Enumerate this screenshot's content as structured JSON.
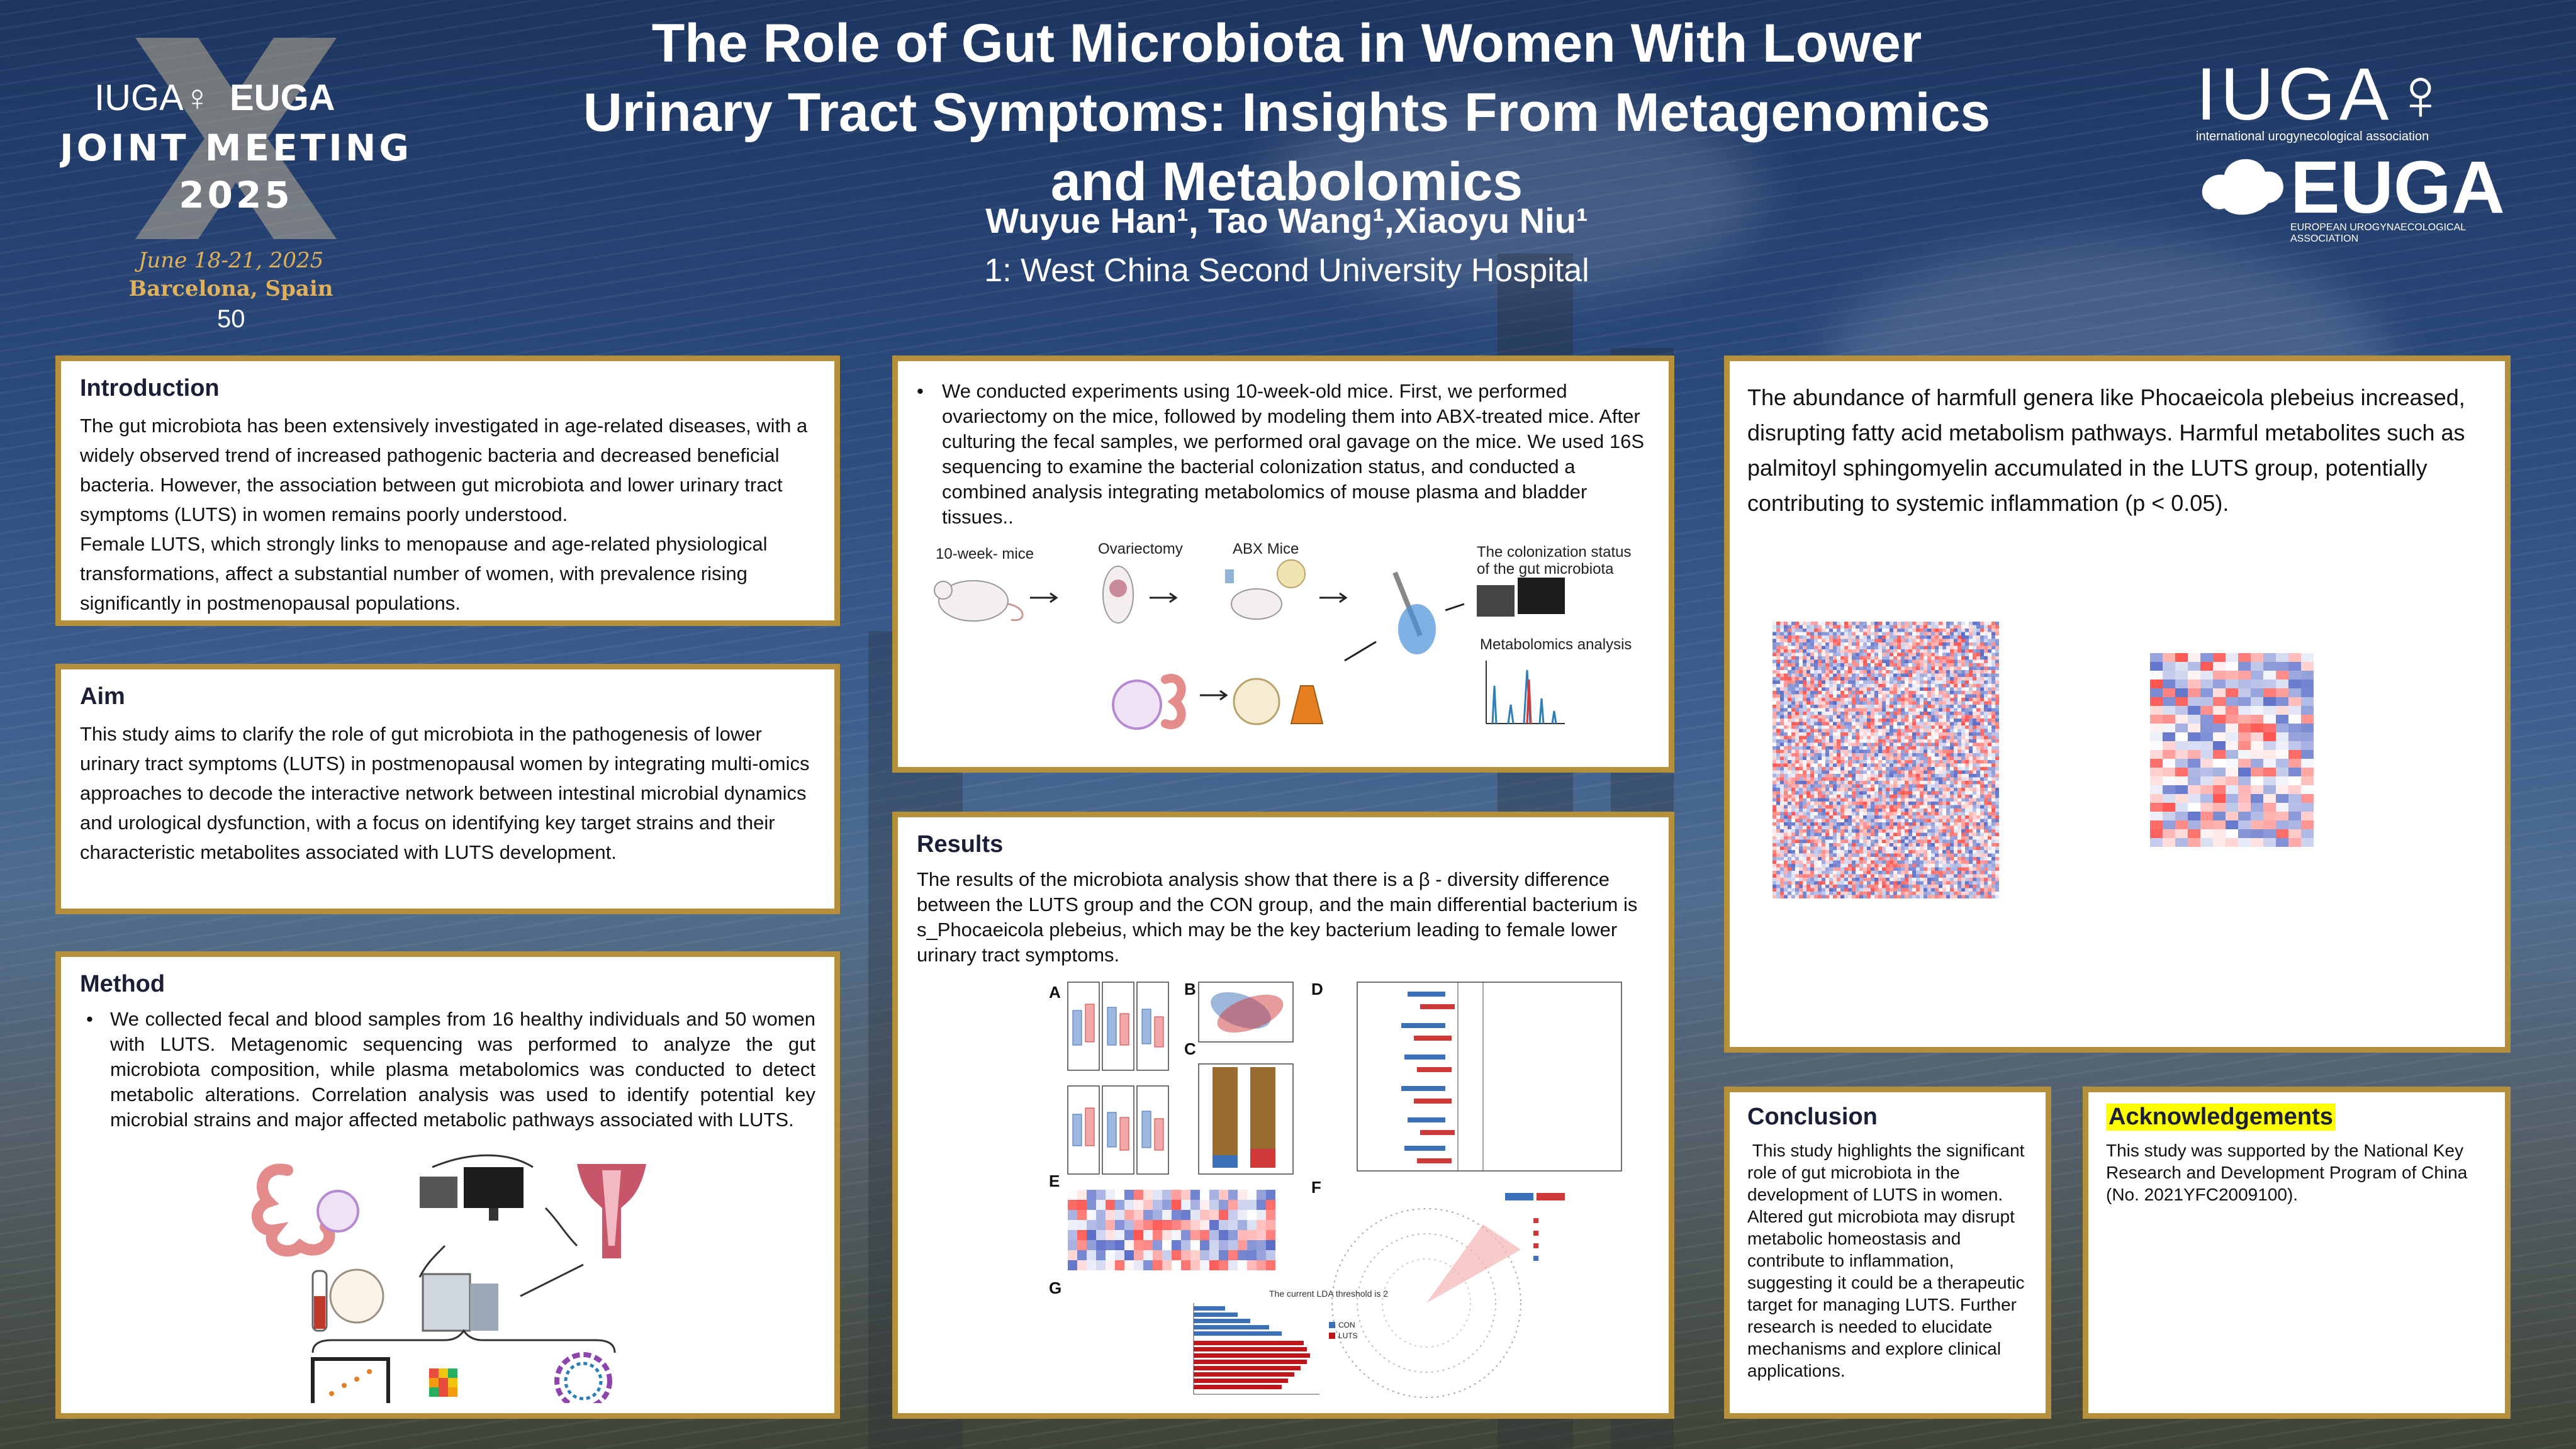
{
  "header": {
    "title_line1": "The Role of Gut Microbiota in Women With Lower",
    "title_line2": "Urinary Tract Symptoms: Insights From Metagenomics",
    "title_line3": "and Metabolomics",
    "authors": "Wuyue Han¹, Tao Wang¹,Xiaoyu Niu¹",
    "affiliation": "1: West China Second University Hospital"
  },
  "logo_left": {
    "iuga": "IUGA♀",
    "euga": "EUGA",
    "line1": "JOINT MEETING",
    "line2": "2025",
    "dates": "June 18-21, 2025",
    "place": "Barcelona, Spain",
    "anniv": "50"
  },
  "logo_right": {
    "iuga": "IUGA♀",
    "iuga_sub": "international urogynecological association",
    "euga": "EUGA",
    "euga_sub": "EUROPEAN UROGYNAECOLOGICAL ASSOCIATION"
  },
  "introduction": {
    "heading": "Introduction",
    "p1": "The gut microbiota has been extensively investigated in age-related diseases, with a widely observed trend of increased pathogenic bacteria and decreased beneficial bacteria. However, the association between gut microbiota and lower urinary tract symptoms (LUTS) in women remains poorly understood.",
    "p2": "Female LUTS, which strongly links to menopause and age-related physiological transformations, affect a substantial number of women, with prevalence rising significantly in postmenopausal populations."
  },
  "aim": {
    "heading": "Aim",
    "text": "This study aims to clarify the role of gut microbiota in the pathogenesis of lower urinary tract symptoms (LUTS) in postmenopausal women by integrating multi-omics approaches to decode the interactive network between intestinal microbial dynamics and urological dysfunction, with a focus on identifying key target strains and their characteristic metabolites associated with LUTS development."
  },
  "method": {
    "heading": "Method",
    "bullet": "We collected fecal and blood samples from 16 healthy individuals and 50 women with LUTS. Metagenomic sequencing was performed to analyze the gut microbiota composition, while plasma metabolomics was conducted to detect metabolic alterations. Correlation analysis was used to identify potential key microbial strains and major affected metabolic pathways associated with LUTS."
  },
  "experiment": {
    "bullet": "We conducted experiments using 10-week-old mice. First, we performed ovariectomy on the mice, followed by modeling them into ABX-treated mice. After culturing the fecal samples, we performed oral gavage on the mice. We used 16S sequencing to examine the bacterial colonization status, and conducted a combined analysis integrating metabolomics of mouse plasma and bladder tissues..",
    "labels": {
      "mice": "10-week- mice",
      "ovx": "Ovariectomy",
      "abx": "ABX Mice",
      "colon1": "The colonization status",
      "colon2": "of the gut microbiota",
      "metab": "Metabolomics analysis"
    }
  },
  "results": {
    "heading": "Results",
    "text": "The results of the microbiota analysis show that there is a β - diversity difference between the LUTS group and the CON group, and the main differential bacterium is s_Phocaeicola plebeius, which may be the key bacterium leading to female lower urinary tract symptoms.",
    "letters": [
      "A",
      "B",
      "C",
      "D",
      "E",
      "F",
      "G"
    ],
    "g_title": "The current LDA threshold is 2",
    "legend_con": "CON",
    "legend_luts": "LUTS"
  },
  "findings": {
    "text": "The abundance of harmfull genera like Phocaeicola plebeius increased, disrupting fatty acid metabolism pathways. Harmful metabolites such as palmitoyl sphingomyelin accumulated in the LUTS group, potentially contributing to systemic inflammation (p < 0.05)."
  },
  "conclusion": {
    "heading": "Conclusion",
    "text": " This study highlights the significant role of gut microbiota in the development of LUTS in women. Altered gut microbiota may disrupt metabolic homeostasis and contribute to inflammation, suggesting it could be a therapeutic target for managing LUTS. Further research is needed to elucidate mechanisms and explore clinical applications."
  },
  "acknowledgements": {
    "heading": "Acknowledgements",
    "text": "This study was supported by the National Key Research and Development Program of China (No. 2021YFC2009100)."
  },
  "colors": {
    "border": "#b48f3c",
    "con": "#3b6fb6",
    "luts": "#d0393a"
  }
}
